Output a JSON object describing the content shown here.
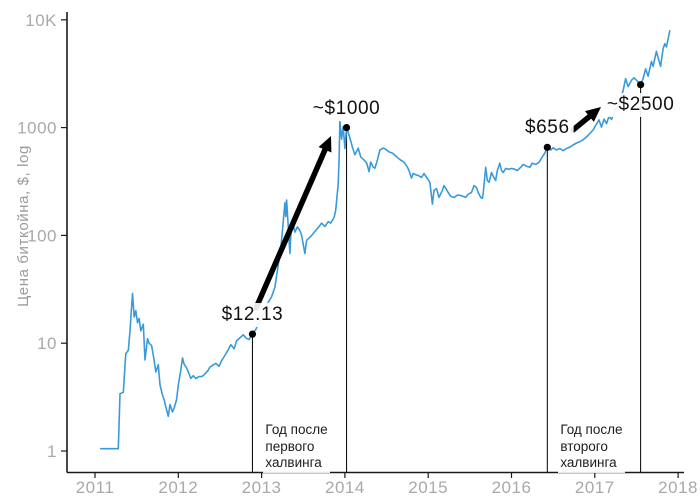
{
  "chart_data": {
    "type": "line",
    "title": "",
    "xlabel": "",
    "ylabel": "Цена биткойна, $, log",
    "y_scale": "log",
    "grid": false,
    "legend": false,
    "axis_ranges": {
      "x": [
        2010.7,
        2018.1
      ],
      "y": [
        1,
        10000
      ]
    },
    "x_ticks": [
      {
        "label": "2011",
        "value": 2011
      },
      {
        "label": "2012",
        "value": 2012
      },
      {
        "label": "2013",
        "value": 2013
      },
      {
        "label": "2014",
        "value": 2014
      },
      {
        "label": "2015",
        "value": 2015
      },
      {
        "label": "2016",
        "value": 2016
      },
      {
        "label": "2017",
        "value": 2017
      },
      {
        "label": "2018",
        "value": 2018
      }
    ],
    "y_ticks": [
      {
        "label": "1",
        "value": 1
      },
      {
        "label": "10",
        "value": 10
      },
      {
        "label": "100",
        "value": 100
      },
      {
        "label": "1000",
        "value": 1000
      },
      {
        "label": "10K",
        "value": 10000
      }
    ],
    "series": [
      {
        "name": "bitcoin-price-usd",
        "color": "#3a9ad9",
        "points": [
          [
            2011.07,
            1.05
          ],
          [
            2011.28,
            1.05
          ],
          [
            2011.3,
            3.4
          ],
          [
            2011.34,
            3.5
          ],
          [
            2011.37,
            8.0
          ],
          [
            2011.4,
            8.6
          ],
          [
            2011.42,
            13
          ],
          [
            2011.45,
            29
          ],
          [
            2011.47,
            17.5
          ],
          [
            2011.49,
            20
          ],
          [
            2011.51,
            15.5
          ],
          [
            2011.53,
            17
          ],
          [
            2011.55,
            13
          ],
          [
            2011.58,
            15
          ],
          [
            2011.6,
            7.0
          ],
          [
            2011.63,
            11
          ],
          [
            2011.65,
            10
          ],
          [
            2011.68,
            9.5
          ],
          [
            2011.71,
            7.0
          ],
          [
            2011.73,
            5.4
          ],
          [
            2011.76,
            6.3
          ],
          [
            2011.78,
            4.1
          ],
          [
            2011.81,
            3.3
          ],
          [
            2011.83,
            3.0
          ],
          [
            2011.86,
            2.4
          ],
          [
            2011.88,
            2.1
          ],
          [
            2011.9,
            2.7
          ],
          [
            2011.93,
            2.3
          ],
          [
            2011.95,
            2.5
          ],
          [
            2011.98,
            3.0
          ],
          [
            2012.0,
            4.1
          ],
          [
            2012.03,
            5.6
          ],
          [
            2012.05,
            7.3
          ],
          [
            2012.07,
            6.4
          ],
          [
            2012.1,
            5.9
          ],
          [
            2012.12,
            5.4
          ],
          [
            2012.15,
            4.7
          ],
          [
            2012.18,
            5.0
          ],
          [
            2012.21,
            4.7
          ],
          [
            2012.25,
            4.9
          ],
          [
            2012.28,
            4.9
          ],
          [
            2012.31,
            5.1
          ],
          [
            2012.35,
            5.5
          ],
          [
            2012.38,
            6.0
          ],
          [
            2012.42,
            6.3
          ],
          [
            2012.45,
            6.5
          ],
          [
            2012.49,
            6.1
          ],
          [
            2012.52,
            6.9
          ],
          [
            2012.56,
            7.7
          ],
          [
            2012.6,
            8.7
          ],
          [
            2012.63,
            9.7
          ],
          [
            2012.67,
            8.9
          ],
          [
            2012.7,
            10.5
          ],
          [
            2012.74,
            11.2
          ],
          [
            2012.78,
            12.0
          ],
          [
            2012.81,
            11.2
          ],
          [
            2012.85,
            10.8
          ],
          [
            2012.89,
            12.13
          ],
          [
            2012.93,
            13.4
          ],
          [
            2012.97,
            15.7
          ],
          [
            2013.01,
            18
          ],
          [
            2013.05,
            20
          ],
          [
            2013.08,
            24
          ],
          [
            2013.12,
            27
          ],
          [
            2013.16,
            33
          ],
          [
            2013.19,
            47
          ],
          [
            2013.23,
            76
          ],
          [
            2013.25,
            110
          ],
          [
            2013.28,
            200
          ],
          [
            2013.29,
            150
          ],
          [
            2013.3,
            213
          ],
          [
            2013.32,
            120
          ],
          [
            2013.34,
            68
          ],
          [
            2013.35,
            100
          ],
          [
            2013.37,
            138
          ],
          [
            2013.4,
            107
          ],
          [
            2013.43,
            120
          ],
          [
            2013.46,
            111
          ],
          [
            2013.48,
            100
          ],
          [
            2013.52,
            68
          ],
          [
            2013.54,
            90
          ],
          [
            2013.58,
            96
          ],
          [
            2013.61,
            102
          ],
          [
            2013.65,
            111
          ],
          [
            2013.69,
            121
          ],
          [
            2013.72,
            130
          ],
          [
            2013.76,
            121
          ],
          [
            2013.8,
            134
          ],
          [
            2013.83,
            130
          ],
          [
            2013.87,
            147
          ],
          [
            2013.89,
            171
          ],
          [
            2013.92,
            300
          ],
          [
            2013.93,
            520
          ],
          [
            2013.94,
            1150
          ],
          [
            2013.96,
            780
          ],
          [
            2013.98,
            1020
          ],
          [
            2014.0,
            640
          ],
          [
            2014.02,
            1000
          ],
          [
            2014.06,
            800
          ],
          [
            2014.09,
            660
          ],
          [
            2014.12,
            560
          ],
          [
            2014.16,
            645
          ],
          [
            2014.19,
            535
          ],
          [
            2014.23,
            500
          ],
          [
            2014.26,
            470
          ],
          [
            2014.29,
            390
          ],
          [
            2014.31,
            480
          ],
          [
            2014.34,
            430
          ],
          [
            2014.36,
            420
          ],
          [
            2014.39,
            500
          ],
          [
            2014.42,
            620
          ],
          [
            2014.46,
            645
          ],
          [
            2014.49,
            630
          ],
          [
            2014.53,
            595
          ],
          [
            2014.57,
            580
          ],
          [
            2014.6,
            555
          ],
          [
            2014.64,
            520
          ],
          [
            2014.67,
            500
          ],
          [
            2014.71,
            478
          ],
          [
            2014.75,
            430
          ],
          [
            2014.77,
            400
          ],
          [
            2014.8,
            340
          ],
          [
            2014.82,
            375
          ],
          [
            2014.85,
            365
          ],
          [
            2014.88,
            360
          ],
          [
            2014.92,
            345
          ],
          [
            2014.95,
            375
          ],
          [
            2014.99,
            337
          ],
          [
            2015.02,
            310
          ],
          [
            2015.05,
            195
          ],
          [
            2015.07,
            262
          ],
          [
            2015.1,
            272
          ],
          [
            2015.13,
            225
          ],
          [
            2015.17,
            262
          ],
          [
            2015.19,
            290
          ],
          [
            2015.23,
            257
          ],
          [
            2015.27,
            230
          ],
          [
            2015.31,
            225
          ],
          [
            2015.35,
            236
          ],
          [
            2015.38,
            236
          ],
          [
            2015.42,
            230
          ],
          [
            2015.45,
            225
          ],
          [
            2015.48,
            241
          ],
          [
            2015.52,
            250
          ],
          [
            2015.55,
            290
          ],
          [
            2015.58,
            278
          ],
          [
            2015.6,
            250
          ],
          [
            2015.63,
            225
          ],
          [
            2015.65,
            221
          ],
          [
            2015.66,
            246
          ],
          [
            2015.69,
            428
          ],
          [
            2015.71,
            324
          ],
          [
            2015.73,
            311
          ],
          [
            2015.76,
            383
          ],
          [
            2015.78,
            353
          ],
          [
            2015.81,
            324
          ],
          [
            2015.83,
            400
          ],
          [
            2015.86,
            467
          ],
          [
            2015.88,
            400
          ],
          [
            2015.9,
            383
          ],
          [
            2015.93,
            418
          ],
          [
            2015.97,
            410
          ],
          [
            2016.0,
            418
          ],
          [
            2016.04,
            410
          ],
          [
            2016.07,
            400
          ],
          [
            2016.11,
            428
          ],
          [
            2016.14,
            456
          ],
          [
            2016.18,
            438
          ],
          [
            2016.22,
            428
          ],
          [
            2016.25,
            467
          ],
          [
            2016.29,
            456
          ],
          [
            2016.33,
            477
          ],
          [
            2016.36,
            520
          ],
          [
            2016.4,
            580
          ],
          [
            2016.43,
            656
          ],
          [
            2016.47,
            620
          ],
          [
            2016.5,
            650
          ],
          [
            2016.54,
            620
          ],
          [
            2016.58,
            640
          ],
          [
            2016.62,
            610
          ],
          [
            2016.66,
            640
          ],
          [
            2016.7,
            660
          ],
          [
            2016.74,
            690
          ],
          [
            2016.78,
            720
          ],
          [
            2016.82,
            740
          ],
          [
            2016.86,
            770
          ],
          [
            2016.9,
            820
          ],
          [
            2016.94,
            880
          ],
          [
            2016.98,
            950
          ],
          [
            2017.02,
            1080
          ],
          [
            2017.05,
            1180
          ],
          [
            2017.08,
            1010
          ],
          [
            2017.11,
            1200
          ],
          [
            2017.14,
            1090
          ],
          [
            2017.17,
            1270
          ],
          [
            2017.2,
            1190
          ],
          [
            2017.24,
            1450
          ],
          [
            2017.28,
            1550
          ],
          [
            2017.31,
            1900
          ],
          [
            2017.34,
            2200
          ],
          [
            2017.37,
            2850
          ],
          [
            2017.4,
            2400
          ],
          [
            2017.44,
            2750
          ],
          [
            2017.47,
            2900
          ],
          [
            2017.51,
            2700
          ],
          [
            2017.55,
            2500
          ],
          [
            2017.58,
            2850
          ],
          [
            2017.61,
            3500
          ],
          [
            2017.64,
            3000
          ],
          [
            2017.68,
            4100
          ],
          [
            2017.7,
            3700
          ],
          [
            2017.74,
            5100
          ],
          [
            2017.77,
            4200
          ],
          [
            2017.79,
            3700
          ],
          [
            2017.82,
            5400
          ],
          [
            2017.84,
            6000
          ],
          [
            2017.86,
            5600
          ],
          [
            2017.9,
            7900
          ]
        ]
      }
    ],
    "annotations": [
      {
        "label": "$12.13",
        "year": 2012.89,
        "price": 12.13
      },
      {
        "label": "~$1000",
        "year": 2014.02,
        "price": 1000
      },
      {
        "label": "$656",
        "year": 2016.43,
        "price": 656
      },
      {
        "label": "~$2500",
        "year": 2017.55,
        "price": 2500
      }
    ],
    "period_notes": [
      {
        "lines": [
          "Год после",
          "первого",
          "халвинга"
        ],
        "from_year": 2012.89,
        "to_year": 2014.02
      },
      {
        "lines": [
          "Год после",
          "второго",
          "халвинга"
        ],
        "from_year": 2016.43,
        "to_year": 2017.55
      }
    ]
  },
  "colors": {
    "line": "#3a9ad9",
    "annotation_text": "#111111",
    "axis": "#1a1a1a",
    "tick_label": "#a9a9a9",
    "ylabel": "#9b9b9b",
    "marker": "#000000",
    "arrow": "#000000"
  }
}
